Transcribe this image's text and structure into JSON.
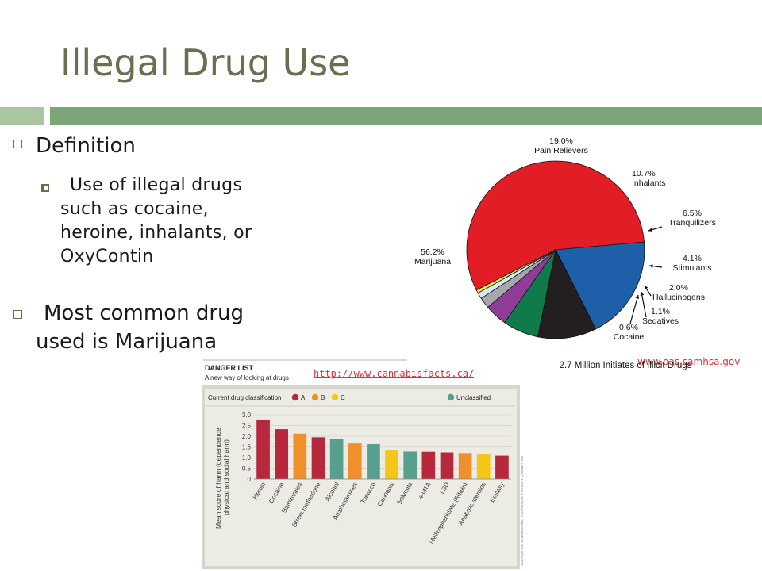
{
  "slide": {
    "title": "Illegal Drug Use",
    "bullet1": "Definition",
    "sub_bullet_lines": [
      "Use of illegal drugs",
      "such as cocaine,",
      "heroine, inhalants, or",
      "OxyContin"
    ],
    "bullet2_lines": [
      "Most common drug",
      "used is Marijuana"
    ],
    "link_cannabis": "http://www.cannabisfacts.ca/",
    "link_samhsa": "www.oas.samhsa.gov"
  },
  "colors": {
    "title": "#6b6f52",
    "accent_bar_light": "#a9c6a0",
    "accent_bar_dark": "#7ba778",
    "link": "#e0323d",
    "class_A": "#b8283c",
    "class_B": "#f0902a",
    "class_C": "#f5c518",
    "unclassified": "#58a08e"
  },
  "chart_data": [
    {
      "type": "pie",
      "title": "2.7 Million Initiates of Illicit Drugs",
      "slices": [
        {
          "label": "Marijuana",
          "value": 56.2,
          "display": "56.2%",
          "color": "#e21d26"
        },
        {
          "label": "Pain Relievers",
          "value": 19.0,
          "display": "19.0%",
          "color": "#1d5fa8"
        },
        {
          "label": "Inhalants",
          "value": 10.7,
          "display": "10.7%",
          "color": "#231f20"
        },
        {
          "label": "Tranquilizers",
          "value": 6.5,
          "display": "6.5%",
          "color": "#0f7a4a"
        },
        {
          "label": "Stimulants",
          "value": 4.1,
          "display": "4.1%",
          "color": "#8e3d98"
        },
        {
          "label": "Hallucinogens",
          "value": 2.0,
          "display": "2.0%",
          "color": "#a6a8ab"
        },
        {
          "label": "Sedatives",
          "value": 1.1,
          "display": "1.1%",
          "color": "#d6ecf3"
        },
        {
          "label": "Cocaine",
          "value": 0.6,
          "display": "0.6%",
          "color": "#f4e94b"
        }
      ]
    },
    {
      "type": "bar",
      "header": "DANGER LIST",
      "subheader": "A new way of looking at drugs",
      "legend_title": "Current drug classification",
      "legend": [
        {
          "code": "A",
          "label": "A",
          "color": "#b8283c"
        },
        {
          "code": "B",
          "label": "B",
          "color": "#f0902a"
        },
        {
          "code": "C",
          "label": "C",
          "color": "#f5c518"
        },
        {
          "code": "U",
          "label": "Unclassified",
          "color": "#58a08e"
        }
      ],
      "ylabel": "Mean score of harm (dependence, physical and social harm)",
      "ylim": [
        0,
        3.0
      ],
      "yticks": [
        "3.0",
        "2.5",
        "2.0",
        "1.5",
        "1.0",
        "0.5",
        "0"
      ],
      "categories": [
        "Heroin",
        "Cocaine",
        "Barbiturates",
        "Street methadone",
        "Alcohol",
        "Amphetamines",
        "Tobacco",
        "Cannabis",
        "Solvents",
        "4-MTA",
        "LSD",
        "Methylphenidate (Ritalin)",
        "Anabolic steroids",
        "Ecstasy"
      ],
      "values": [
        2.78,
        2.33,
        2.12,
        1.95,
        1.86,
        1.66,
        1.63,
        1.33,
        1.28,
        1.27,
        1.24,
        1.21,
        1.16,
        1.09
      ],
      "classes": [
        "A",
        "A",
        "B",
        "A",
        "U",
        "B",
        "U",
        "C",
        "U",
        "A",
        "A",
        "B",
        "C",
        "A"
      ],
      "source": "SOURCE: UK SCIENCE AND TECHNOLOGY SELECT COMMITTEE"
    }
  ]
}
